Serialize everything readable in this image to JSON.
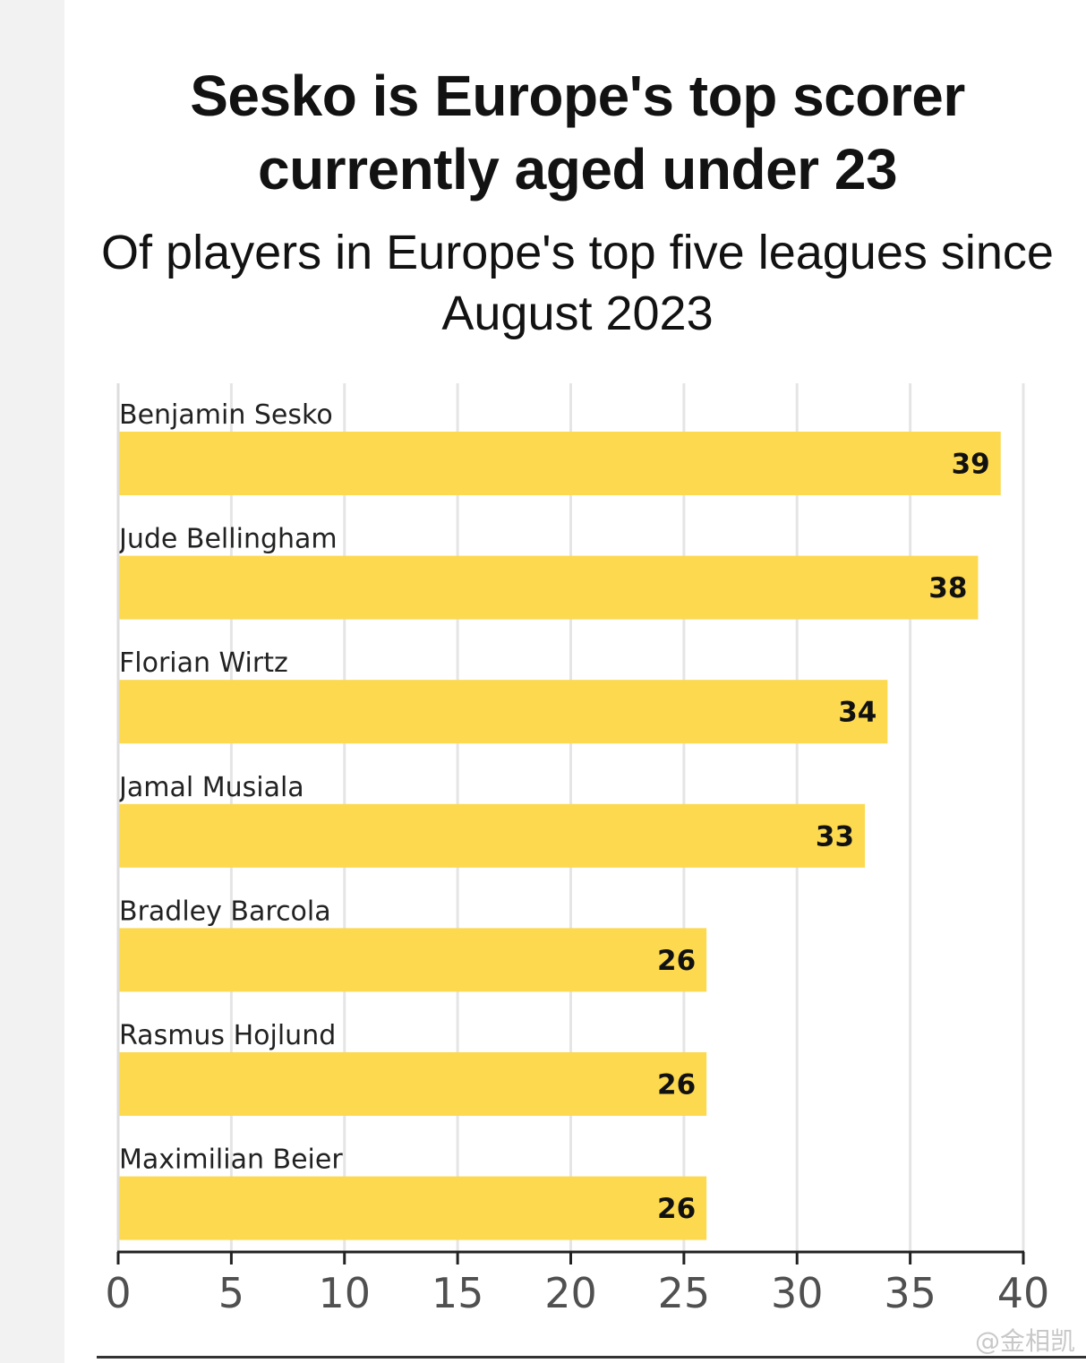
{
  "title": "Sesko is Europe's top scorer currently aged under 23",
  "subtitle": "Of players in Europe's top five leagues since August 2023",
  "watermark": "@金相凯",
  "colors": {
    "bar": "#fcd94f",
    "grid": "#e5e5e5",
    "axis": "#222222",
    "text": "#121212",
    "tick_text": "#505050"
  },
  "chart_data": {
    "type": "bar",
    "orientation": "horizontal",
    "categories": [
      "Benjamin Sesko",
      "Jude Bellingham",
      "Florian Wirtz",
      "Jamal Musiala",
      "Bradley Barcola",
      "Rasmus Hojlund",
      "Maximilian Beier"
    ],
    "values": [
      39,
      38,
      34,
      33,
      26,
      26,
      26
    ],
    "value_labels": [
      "39",
      "38",
      "34",
      "33",
      "26",
      "26",
      "26"
    ],
    "xlim": [
      0,
      40
    ],
    "xticks": [
      0,
      5,
      10,
      15,
      20,
      25,
      30,
      35,
      40
    ],
    "xtick_labels": [
      "0",
      "5",
      "10",
      "15",
      "20",
      "25",
      "30",
      "35",
      "40"
    ],
    "xlabel": "",
    "ylabel": "",
    "grid": "vertical",
    "legend": "none"
  }
}
